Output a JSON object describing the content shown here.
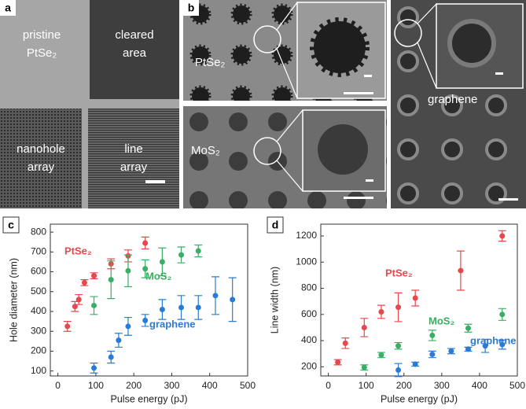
{
  "panel_a": {
    "label": "a",
    "regions": [
      {
        "lines": [
          "pristine",
          "PtSe₂"
        ]
      },
      {
        "lines": [
          "cleared",
          "area"
        ]
      },
      {
        "lines": [
          "nanohole",
          "array"
        ]
      },
      {
        "lines": [
          "line",
          "array"
        ]
      }
    ]
  },
  "panel_b": {
    "label": "b",
    "images": [
      {
        "name": "PtSe₂"
      },
      {
        "name": "MoS₂"
      },
      {
        "name": "graphene"
      }
    ]
  },
  "chart_data": [
    {
      "type": "scatter",
      "label": "c",
      "xlabel": "Pulse energy (pJ)",
      "ylabel": "Hole diameter (nm)",
      "xlim": [
        -20,
        500
      ],
      "ylim": [
        75,
        840
      ],
      "xticks": [
        0,
        100,
        200,
        300,
        400,
        500
      ],
      "yticks": [
        100,
        200,
        300,
        400,
        500,
        600,
        700,
        800
      ],
      "series": [
        {
          "name": "PtSe₂",
          "color": "#e8474c",
          "x": [
            25,
            45,
            55,
            70,
            95,
            140,
            185,
            230
          ],
          "values": [
            325,
            425,
            460,
            545,
            580,
            640,
            680,
            745
          ],
          "errors": [
            25,
            25,
            25,
            15,
            15,
            25,
            30,
            30
          ]
        },
        {
          "name": "MoS₂",
          "color": "#3aae64",
          "x": [
            95,
            140,
            185,
            230,
            275,
            325,
            370
          ],
          "values": [
            430,
            560,
            605,
            615,
            650,
            685,
            705
          ],
          "errors": [
            45,
            95,
            80,
            45,
            70,
            40,
            30
          ]
        },
        {
          "name": "graphene",
          "color": "#2a7bd4",
          "x": [
            95,
            140,
            160,
            185,
            230,
            275,
            325,
            370,
            415,
            460
          ],
          "values": [
            115,
            170,
            255,
            325,
            355,
            410,
            420,
            420,
            480,
            460
          ],
          "errors": [
            25,
            30,
            35,
            45,
            30,
            50,
            60,
            60,
            95,
            110
          ]
        }
      ]
    },
    {
      "type": "scatter",
      "label": "d",
      "xlabel": "Pulse energy (pJ)",
      "ylabel": "Line width (nm)",
      "xlim": [
        -20,
        500
      ],
      "ylim": [
        130,
        1290
      ],
      "xticks": [
        0,
        100,
        200,
        300,
        400,
        500
      ],
      "yticks": [
        200,
        400,
        600,
        800,
        1000,
        1200
      ],
      "series": [
        {
          "name": "PtSe₂",
          "color": "#e8474c",
          "x": [
            25,
            45,
            95,
            140,
            185,
            230,
            350,
            460
          ],
          "values": [
            235,
            380,
            500,
            620,
            655,
            725,
            935,
            1200
          ],
          "errors": [
            20,
            40,
            70,
            50,
            110,
            60,
            150,
            40
          ]
        },
        {
          "name": "MoS₂",
          "color": "#3aae64",
          "x": [
            95,
            140,
            185,
            275,
            370,
            460
          ],
          "values": [
            195,
            290,
            360,
            440,
            495,
            600
          ],
          "errors": [
            20,
            20,
            25,
            40,
            30,
            45
          ]
        },
        {
          "name": "graphene",
          "color": "#2a7bd4",
          "x": [
            185,
            230,
            275,
            325,
            370,
            415,
            460
          ],
          "values": [
            175,
            220,
            295,
            320,
            335,
            360,
            370
          ],
          "errors": [
            50,
            15,
            25,
            20,
            15,
            50,
            35
          ]
        }
      ]
    }
  ]
}
